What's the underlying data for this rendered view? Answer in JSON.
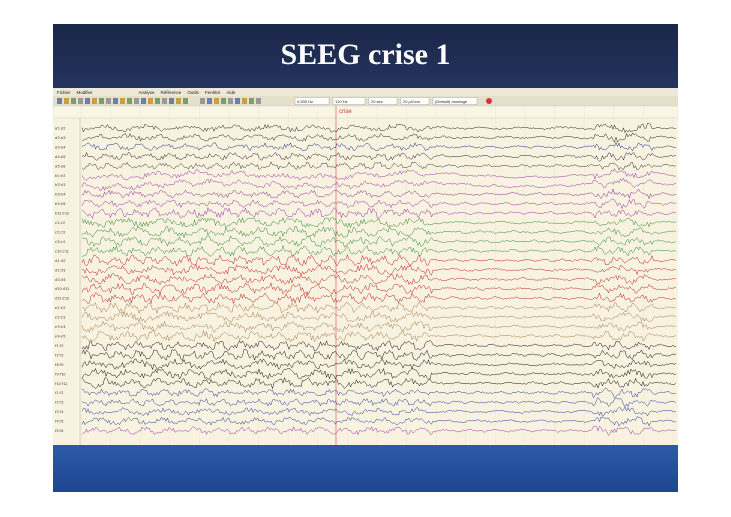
{
  "slide": {
    "title": "SEEG crise 1"
  },
  "software": {
    "menu": [
      "Fichier",
      "Modifier",
      "Analyse",
      "Référence",
      "Outils",
      "Fenêtre",
      "Aide"
    ],
    "toolbar": [
      "0,530 Hz",
      "120 Hz",
      "20 sec",
      "20 µV/cm",
      "(Default) montage"
    ],
    "marker": "crise",
    "channels": [
      "a'1 a'2",
      "a'2 a'3",
      "a'3 a'4",
      "a'4 a'5",
      "a'5 a'6",
      "b'1 b'2",
      "b'2 b'3",
      "b'3 b'4",
      "b'4 b'5",
      "b'11 b'12",
      "c'1 c'2",
      "c'2 c'3",
      "c'3 c'4",
      "c'10 c'11",
      "d'1 d'2",
      "d'2 d'3",
      "d'3 d'4",
      "d'10 d'11",
      "d'11 d'12",
      "e'1 e'2",
      "e'2 e'3",
      "e'3 e'4",
      "e'4 e'5",
      "f'1 f'2",
      "f'2 f'3",
      "f'8 f'9",
      "f'9 f'10",
      "f'10 f'11",
      "t'1 t'2",
      "t'2 t'3",
      "t'3 t'4",
      "t'4 t'5",
      "t'5 t'6"
    ]
  }
}
